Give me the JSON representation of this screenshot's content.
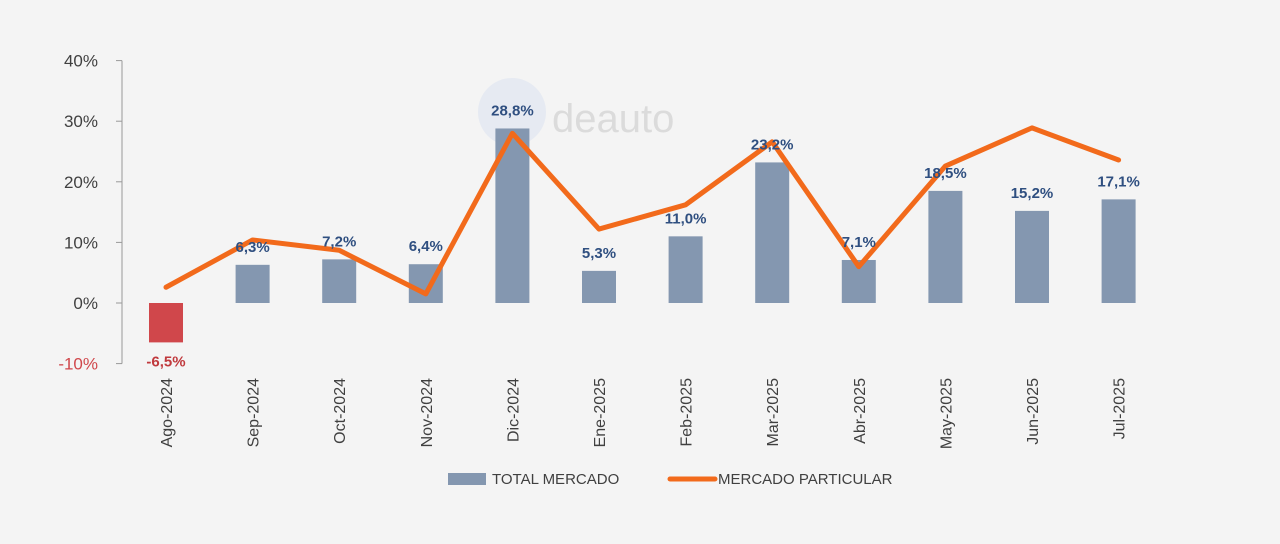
{
  "chart_data": {
    "type": "bar+line",
    "categories": [
      "Ago-2024",
      "Sep-2024",
      "Oct-2024",
      "Nov-2024",
      "Dic-2024",
      "Ene-2025",
      "Feb-2025",
      "Mar-2025",
      "Abr-2025",
      "May-2025",
      "Jun-2025",
      "Jul-2025"
    ],
    "series": [
      {
        "name": "TOTAL MERCADO",
        "type": "bar",
        "color": "#8497b0",
        "negative_color": "#d0474b",
        "values": [
          -6.5,
          6.3,
          7.2,
          6.4,
          28.8,
          5.3,
          11.0,
          23.2,
          7.1,
          18.5,
          15.2,
          17.1
        ],
        "labels": [
          "-6,5%",
          "6,3%",
          "7,2%",
          "6,4%",
          "28,8%",
          "5,3%",
          "11,0%",
          "23,2%",
          "7,1%",
          "18,5%",
          "15,2%",
          "17,1%"
        ]
      },
      {
        "name": "MERCADO PARTICULAR",
        "type": "line",
        "color": "#f26a1b",
        "values": [
          2.6,
          10.4,
          8.7,
          1.5,
          28.0,
          12.2,
          16.2,
          26.6,
          6.0,
          22.6,
          28.9,
          23.6
        ]
      }
    ],
    "yticks": [
      "-10%",
      "0%",
      "10%",
      "20%",
      "30%",
      "40%"
    ],
    "ytick_values": [
      -10,
      0,
      10,
      20,
      30,
      40
    ],
    "ylim": [
      -10,
      40
    ],
    "grid": false,
    "legend": "bottom",
    "watermark": "deauto"
  }
}
